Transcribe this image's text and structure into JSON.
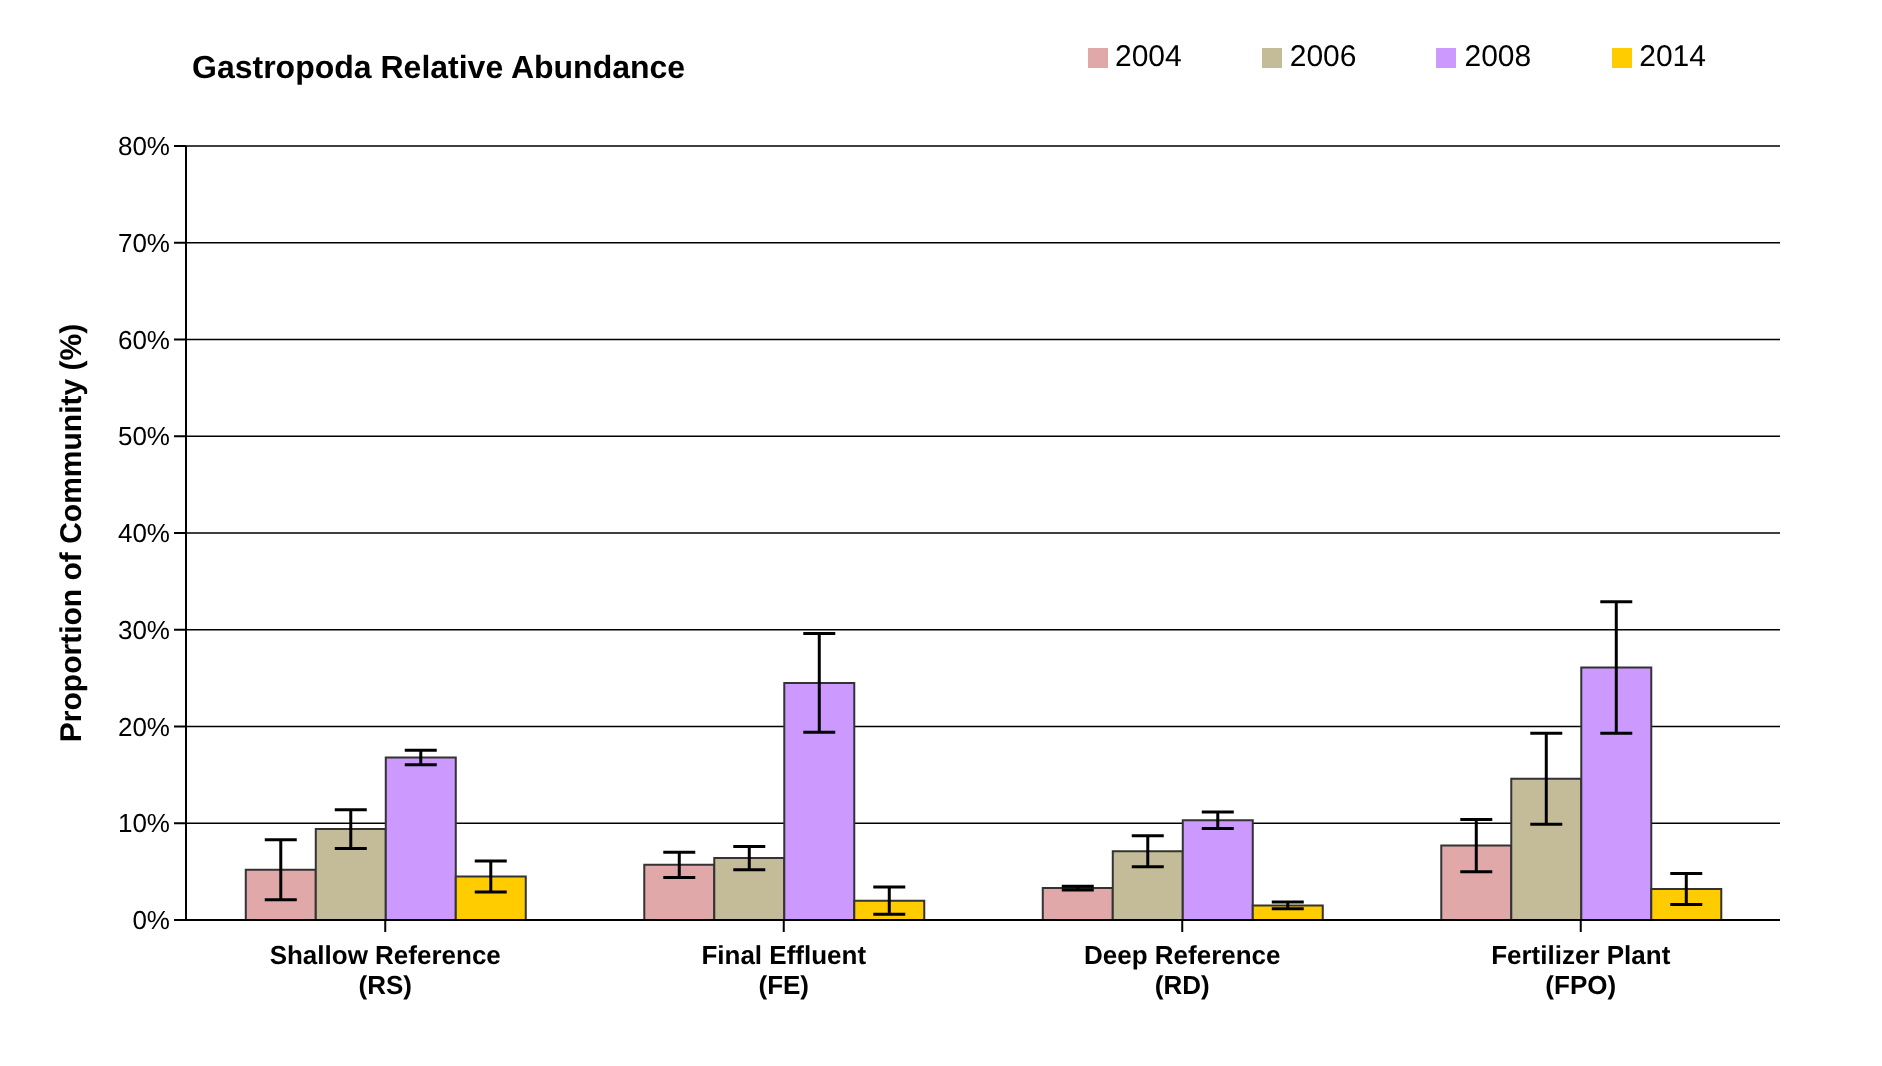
{
  "chart_data": {
    "type": "bar",
    "title": "Gastropoda Relative Abundance",
    "ylabel": "Proportion of Community (%)",
    "categories": [
      "Shallow Reference\n(RS)",
      "Final Effluent\n(FE)",
      "Deep Reference\n(RD)",
      "Fertilizer Plant\n(FPO)"
    ],
    "series": [
      {
        "name": "2004",
        "color": "#e0a8a8",
        "values": [
          5.2,
          5.7,
          3.3,
          7.7
        ],
        "errors": [
          3.1,
          1.3,
          0.2,
          2.7
        ]
      },
      {
        "name": "2006",
        "color": "#c4bc98",
        "values": [
          9.4,
          6.4,
          7.1,
          14.6
        ],
        "errors": [
          2.0,
          1.2,
          1.6,
          4.7
        ]
      },
      {
        "name": "2008",
        "color": "#cc99ff",
        "values": [
          16.8,
          24.5,
          10.3,
          26.1
        ],
        "errors": [
          0.75,
          5.1,
          0.85,
          6.8
        ]
      },
      {
        "name": "2014",
        "color": "#ffcc00",
        "values": [
          4.5,
          2.0,
          1.5,
          3.2
        ],
        "errors": [
          1.6,
          1.4,
          0.35,
          1.6
        ]
      }
    ],
    "ylim": [
      0,
      80
    ],
    "yticks": [
      {
        "value": 0,
        "label": "0%"
      },
      {
        "value": 10,
        "label": "10%"
      },
      {
        "value": 20,
        "label": "20%"
      },
      {
        "value": 30,
        "label": "30%"
      },
      {
        "value": 40,
        "label": "40%"
      },
      {
        "value": 50,
        "label": "50%"
      },
      {
        "value": 60,
        "label": "60%"
      },
      {
        "value": 70,
        "label": "70%"
      },
      {
        "value": 80,
        "label": "80%"
      }
    ],
    "grid": "y",
    "legend": "top right"
  }
}
